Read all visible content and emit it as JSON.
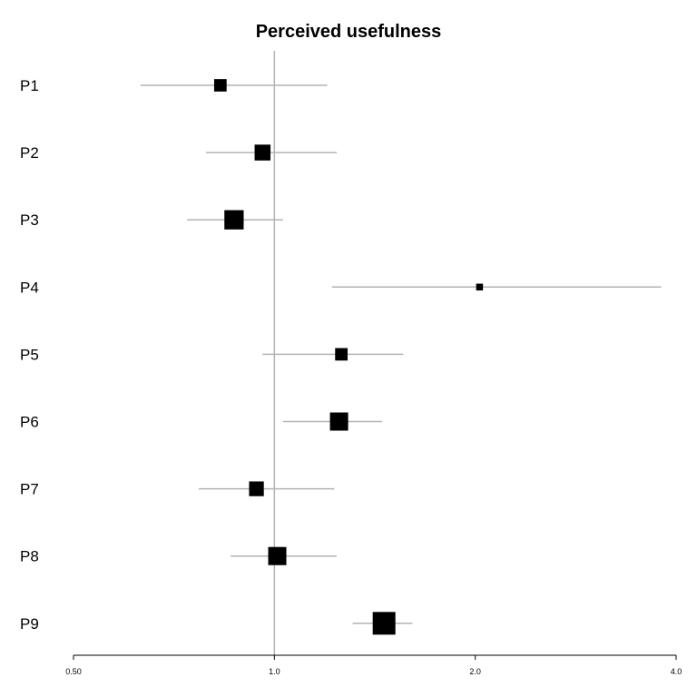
{
  "chart_data": {
    "type": "forest",
    "title": "Perceived usefulness",
    "x_scale": "log",
    "xlim": [
      0.5,
      4.0
    ],
    "x_ticks": [
      {
        "value": 0.5,
        "label": "0.50"
      },
      {
        "value": 1.0,
        "label": "1.0"
      },
      {
        "value": 2.0,
        "label": "2.0"
      },
      {
        "value": 4.0,
        "label": "4.0"
      }
    ],
    "reference_line": 1.0,
    "rows": [
      {
        "label": "P1",
        "estimate": 0.83,
        "lower": 0.63,
        "upper": 1.2,
        "weight": 0.55
      },
      {
        "label": "P2",
        "estimate": 0.96,
        "lower": 0.79,
        "upper": 1.24,
        "weight": 0.7
      },
      {
        "label": "P3",
        "estimate": 0.87,
        "lower": 0.74,
        "upper": 1.03,
        "weight": 0.85
      },
      {
        "label": "P4",
        "estimate": 2.03,
        "lower": 1.22,
        "upper": 3.8,
        "weight": 0.3
      },
      {
        "label": "P5",
        "estimate": 1.26,
        "lower": 0.96,
        "upper": 1.56,
        "weight": 0.55
      },
      {
        "label": "P6",
        "estimate": 1.25,
        "lower": 1.03,
        "upper": 1.45,
        "weight": 0.8
      },
      {
        "label": "P7",
        "estimate": 0.94,
        "lower": 0.77,
        "upper": 1.23,
        "weight": 0.65
      },
      {
        "label": "P8",
        "estimate": 1.01,
        "lower": 0.86,
        "upper": 1.24,
        "weight": 0.8
      },
      {
        "label": "P9",
        "estimate": 1.46,
        "lower": 1.31,
        "upper": 1.61,
        "weight": 1.0
      }
    ],
    "colors": {
      "marker": "#000000",
      "ci_line": "#b3b3b3",
      "ref_line": "#b3b3b3",
      "axis": "#000000"
    }
  }
}
